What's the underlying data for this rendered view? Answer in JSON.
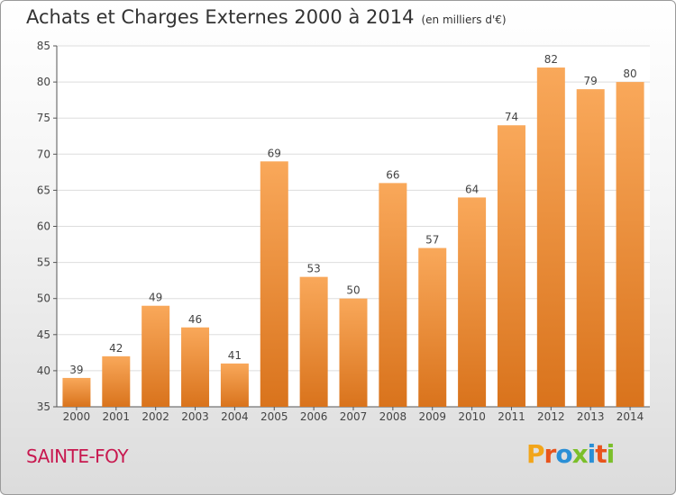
{
  "chart_data": {
    "type": "bar",
    "title": "Achats et Charges Externes 2000 à 2014",
    "subtitle": "(en milliers d'€)",
    "categories": [
      "2000",
      "2001",
      "2002",
      "2003",
      "2004",
      "2005",
      "2006",
      "2007",
      "2008",
      "2009",
      "2010",
      "2011",
      "2012",
      "2013",
      "2014"
    ],
    "values": [
      39,
      42,
      49,
      46,
      41,
      69,
      53,
      50,
      66,
      57,
      64,
      74,
      82,
      79,
      80
    ],
    "ylim": [
      35,
      85
    ],
    "yticks": [
      35,
      40,
      45,
      50,
      55,
      60,
      65,
      70,
      75,
      80,
      85
    ],
    "grid": true,
    "bar_color_top": "#f9a85a",
    "bar_color_bottom": "#d9731c"
  },
  "footer": {
    "city": "SAINTE-FOY",
    "logo_letters": [
      "P",
      "r",
      "o",
      "x",
      "i",
      "t",
      "i"
    ],
    "logo_colors": [
      "#f2a51a",
      "#e8541c",
      "#2a8fd6",
      "#7bbf2a",
      "#2a8fd6",
      "#e8541c",
      "#7bbf2a"
    ]
  }
}
